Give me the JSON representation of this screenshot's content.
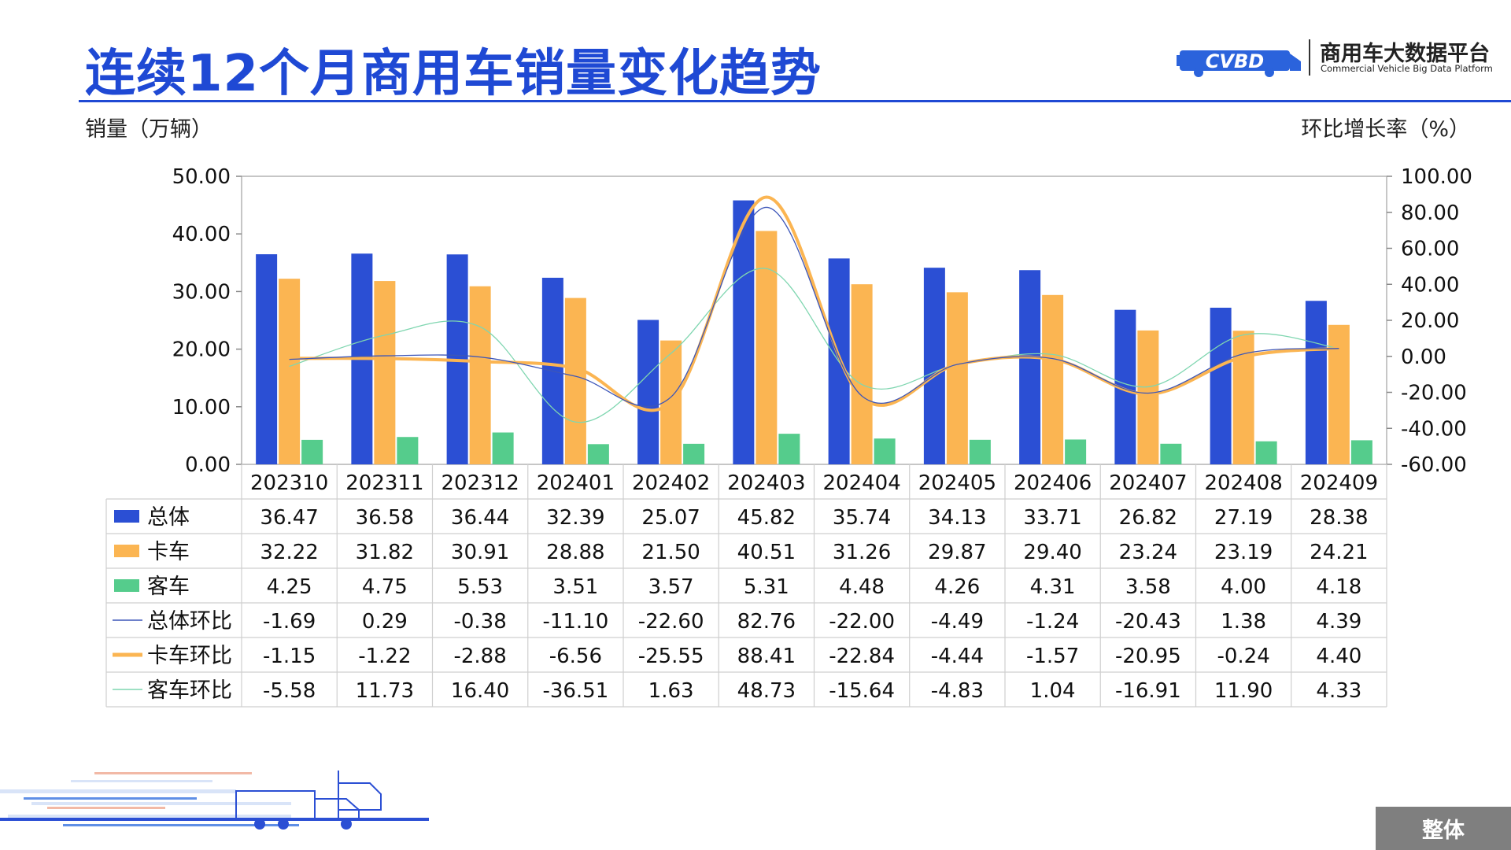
{
  "header": {
    "title": "连续12个月商用车销量变化趋势",
    "logo_name": "商用车大数据平台",
    "logo_sub": "Commercial Vehicle Big Data Platform",
    "logo_mark": "CVBD"
  },
  "badge": "整体",
  "chart_data": {
    "type": "bar",
    "title": "连续12个月商用车销量变化趋势",
    "ylabel": "销量（万辆）",
    "y2label": "环比增长率（%）",
    "ylim": [
      0,
      50
    ],
    "y2lim": [
      -60,
      100
    ],
    "yticks": [
      "50.00",
      "40.00",
      "30.00",
      "20.00",
      "10.00",
      "0.00"
    ],
    "y2ticks": [
      "100.00",
      "80.00",
      "60.00",
      "40.00",
      "20.00",
      "0.00",
      "-20.00",
      "-40.00",
      "-60.00"
    ],
    "categories": [
      "202310",
      "202311",
      "202312",
      "202401",
      "202402",
      "202403",
      "202404",
      "202405",
      "202406",
      "202407",
      "202408",
      "202409"
    ],
    "series": [
      {
        "name": "总体",
        "kind": "bar",
        "axis": "left",
        "color": "#2b4fd4",
        "values": [
          36.47,
          36.58,
          36.44,
          32.39,
          25.07,
          45.82,
          35.74,
          34.13,
          33.71,
          26.82,
          27.19,
          28.38
        ],
        "labels": [
          "36.47",
          "36.58",
          "36.44",
          "32.39",
          "25.07",
          "45.82",
          "35.74",
          "34.13",
          "33.71",
          "26.82",
          "27.19",
          "28.38"
        ]
      },
      {
        "name": "卡车",
        "kind": "bar",
        "axis": "left",
        "color": "#fbb552",
        "values": [
          32.22,
          31.82,
          30.91,
          28.88,
          21.5,
          40.51,
          31.26,
          29.87,
          29.4,
          23.24,
          23.19,
          24.21
        ],
        "labels": [
          "32.22",
          "31.82",
          "30.91",
          "28.88",
          "21.50",
          "40.51",
          "31.26",
          "29.87",
          "29.40",
          "23.24",
          "23.19",
          "24.21"
        ]
      },
      {
        "name": "客车",
        "kind": "bar",
        "axis": "left",
        "color": "#55cc8c",
        "values": [
          4.25,
          4.75,
          5.53,
          3.51,
          3.57,
          5.31,
          4.48,
          4.26,
          4.31,
          3.58,
          4.0,
          4.18
        ],
        "labels": [
          "4.25",
          "4.75",
          "5.53",
          "3.51",
          "3.57",
          "5.31",
          "4.48",
          "4.26",
          "4.31",
          "3.58",
          "4.00",
          "4.18"
        ]
      },
      {
        "name": "总体环比",
        "kind": "line",
        "axis": "right",
        "color": "#3d56b8",
        "values": [
          -1.69,
          0.29,
          -0.38,
          -11.1,
          -22.6,
          82.76,
          -22.0,
          -4.49,
          -1.24,
          -20.43,
          1.38,
          4.39
        ],
        "labels": [
          "-1.69",
          "0.29",
          "-0.38",
          "-11.10",
          "-22.60",
          "82.76",
          "-22.00",
          "-4.49",
          "-1.24",
          "-20.43",
          "1.38",
          "4.39"
        ]
      },
      {
        "name": "卡车环比",
        "kind": "line",
        "axis": "right",
        "color": "#fbb552",
        "values": [
          -1.15,
          -1.22,
          -2.88,
          -6.56,
          -25.55,
          88.41,
          -22.84,
          -4.44,
          -1.57,
          -20.95,
          -0.24,
          4.4
        ],
        "labels": [
          "-1.15",
          "-1.22",
          "-2.88",
          "-6.56",
          "-25.55",
          "88.41",
          "-22.84",
          "-4.44",
          "-1.57",
          "-20.95",
          "-0.24",
          "4.40"
        ]
      },
      {
        "name": "客车环比",
        "kind": "line",
        "axis": "right",
        "color": "#7fd6b0",
        "values": [
          -5.58,
          11.73,
          16.4,
          -36.51,
          1.63,
          48.73,
          -15.64,
          -4.83,
          1.04,
          -16.91,
          11.9,
          4.33
        ],
        "labels": [
          "-5.58",
          "11.73",
          "16.40",
          "-36.51",
          "1.63",
          "48.73",
          "-15.64",
          "-4.83",
          "1.04",
          "-16.91",
          "11.90",
          "4.33"
        ]
      }
    ],
    "grid": false,
    "legend": "data table"
  }
}
